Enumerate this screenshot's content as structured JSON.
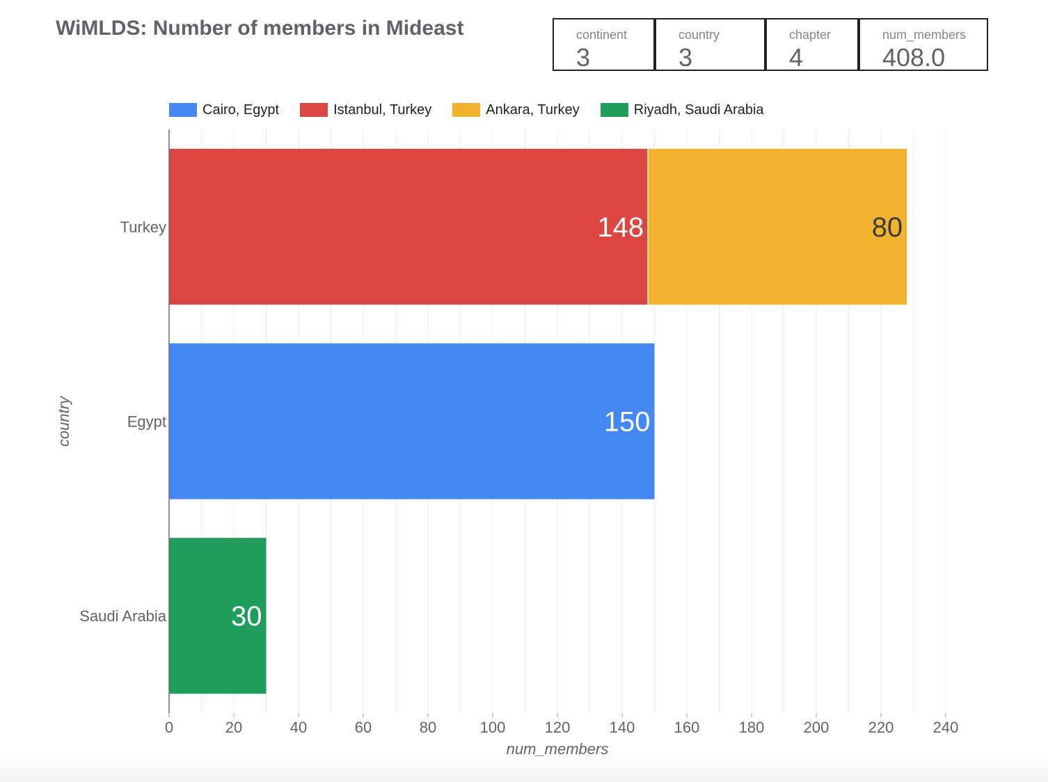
{
  "title": "WiMLDS: Number of members in Mideast",
  "scorecards": [
    {
      "label": "continent",
      "value": "3"
    },
    {
      "label": "country",
      "value": "3"
    },
    {
      "label": "chapter",
      "value": "4"
    },
    {
      "label": "num_members",
      "value": "408.0"
    }
  ],
  "chart_data": {
    "type": "bar",
    "orientation": "horizontal",
    "stacked": true,
    "categories": [
      "Turkey",
      "Egypt",
      "Saudi Arabia"
    ],
    "series": [
      {
        "name": "Cairo, Egypt",
        "color": "#4688f1",
        "values": [
          0,
          150,
          0
        ]
      },
      {
        "name": "Istanbul, Turkey",
        "color": "#db4640",
        "values": [
          148,
          0,
          0
        ]
      },
      {
        "name": "Ankara, Turkey",
        "color": "#f1b32e",
        "values": [
          80,
          0,
          0
        ]
      },
      {
        "name": "Riyadh, Saudi Arabia",
        "color": "#1f9d5b",
        "values": [
          0,
          0,
          30
        ]
      }
    ],
    "data_label_colors": {
      "Cairo, Egypt": "#ffffff",
      "Istanbul, Turkey": "#ffffff",
      "Ankara, Turkey": "#3c3c3c",
      "Riyadh, Saudi Arabia": "#ffffff"
    },
    "xlabel": "num_members",
    "ylabel": "country",
    "xlim": [
      0,
      240
    ],
    "xticks": [
      0,
      20,
      40,
      60,
      80,
      100,
      120,
      140,
      160,
      180,
      200,
      220,
      240
    ],
    "grid": true,
    "legend_position": "top"
  }
}
